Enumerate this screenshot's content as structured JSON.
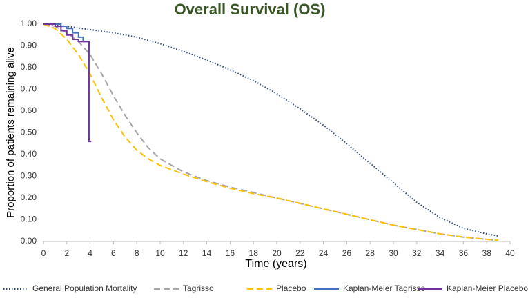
{
  "chart_data": {
    "type": "line",
    "title": "Overall Survival (OS)",
    "x_label": "Time (years)",
    "y_label": "Proportion of patients remaining alive",
    "xlim": [
      0,
      40
    ],
    "xticks": [
      0,
      2,
      4,
      6,
      8,
      10,
      12,
      14,
      16,
      18,
      20,
      22,
      24,
      26,
      28,
      30,
      32,
      34,
      36,
      38,
      40
    ],
    "ylim": [
      0,
      1
    ],
    "yticks": [
      {
        "value": 0,
        "label": "0.00"
      },
      {
        "value": 0.1,
        "label": "0.10"
      },
      {
        "value": 0.2,
        "label": "0.20"
      },
      {
        "value": 0.3,
        "label": "0.30"
      },
      {
        "value": 0.4,
        "label": "0.40"
      },
      {
        "value": 0.5,
        "label": "0.50"
      },
      {
        "value": 0.6,
        "label": "0.60"
      },
      {
        "value": 0.7,
        "label": "0.70"
      },
      {
        "value": 0.8,
        "label": "0.80"
      },
      {
        "value": 0.9,
        "label": "0.90"
      },
      {
        "value": 1,
        "label": "1.00"
      }
    ],
    "legend": "bottom",
    "series": [
      {
        "name": "General Population Mortality",
        "color": "#2e4a7d",
        "style": "dotted",
        "x": [
          0,
          2,
          4,
          6,
          8,
          10,
          12,
          14,
          16,
          18,
          20,
          22,
          24,
          26,
          28,
          30,
          32,
          34,
          36,
          38,
          39
        ],
        "values": [
          1.0,
          0.99,
          0.975,
          0.96,
          0.94,
          0.91,
          0.875,
          0.835,
          0.79,
          0.74,
          0.68,
          0.61,
          0.535,
          0.45,
          0.36,
          0.27,
          0.18,
          0.11,
          0.06,
          0.035,
          0.025
        ]
      },
      {
        "name": "Tagrisso",
        "color": "#a5a5a5",
        "style": "dashed",
        "x": [
          0,
          1,
          2,
          3,
          4,
          5,
          6,
          7,
          8,
          9,
          10,
          12,
          14,
          16,
          18,
          20,
          22,
          24,
          26,
          28,
          30,
          32,
          34,
          36,
          38,
          39
        ],
        "values": [
          1.0,
          0.99,
          0.96,
          0.92,
          0.86,
          0.77,
          0.67,
          0.58,
          0.5,
          0.43,
          0.38,
          0.32,
          0.28,
          0.25,
          0.225,
          0.2,
          0.175,
          0.15,
          0.125,
          0.1,
          0.075,
          0.055,
          0.035,
          0.02,
          0.01,
          0.005
        ]
      },
      {
        "name": "Placebo",
        "color": "#ffc000",
        "style": "dashed",
        "x": [
          0,
          1,
          2,
          3,
          4,
          5,
          6,
          7,
          8,
          9,
          10,
          12,
          14,
          16,
          18,
          20,
          22,
          24,
          26,
          28,
          30,
          32,
          34,
          36,
          38,
          39
        ],
        "values": [
          1.0,
          0.98,
          0.93,
          0.86,
          0.77,
          0.66,
          0.56,
          0.48,
          0.42,
          0.38,
          0.35,
          0.31,
          0.275,
          0.245,
          0.22,
          0.2,
          0.175,
          0.15,
          0.125,
          0.1,
          0.075,
          0.055,
          0.035,
          0.02,
          0.01,
          0.005
        ]
      },
      {
        "name": "Kaplan-Meier Tagrisso",
        "color": "#4472c4",
        "style": "solid",
        "x": [
          0,
          1.5,
          1.5,
          2,
          2,
          2.5,
          2.5,
          3,
          3,
          3.4,
          3.4,
          3.9,
          3.9
        ],
        "values": [
          1.0,
          1.0,
          0.99,
          0.99,
          0.98,
          0.98,
          0.96,
          0.96,
          0.94,
          0.94,
          0.92,
          0.92,
          0.9
        ]
      },
      {
        "name": "Kaplan-Meier Placebo",
        "color": "#7030a0",
        "style": "solid",
        "x": [
          0,
          1,
          1,
          1.5,
          1.5,
          2,
          2,
          2.5,
          2.5,
          3,
          3,
          3.9,
          3.9,
          4.1
        ],
        "values": [
          1.0,
          1.0,
          0.99,
          0.99,
          0.97,
          0.97,
          0.95,
          0.95,
          0.93,
          0.93,
          0.92,
          0.92,
          0.46,
          0.46
        ]
      }
    ]
  }
}
